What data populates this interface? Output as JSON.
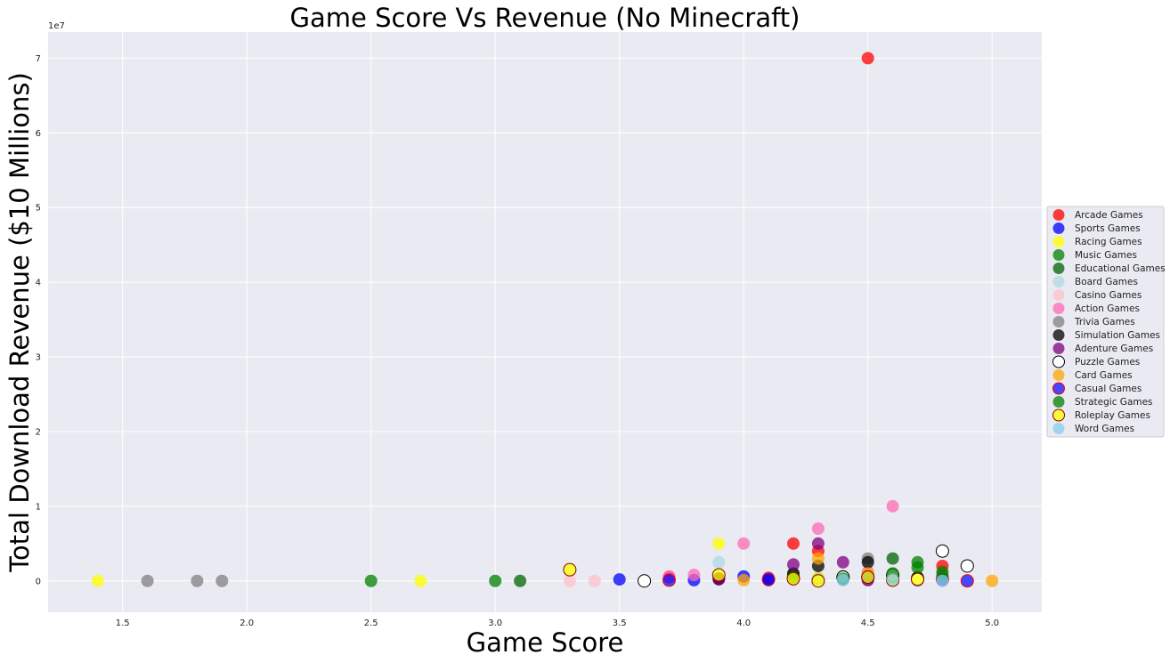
{
  "chart_data": {
    "type": "scatter",
    "title": "Game Score Vs Revenue (No Minecraft)",
    "xlabel": "Game Score",
    "ylabel": "Total Download Revenue ($10 Millions)",
    "y_offset_label": "1e7",
    "xlim": [
      1.2,
      5.2
    ],
    "ylim": [
      -0.42,
      7.35
    ],
    "y_scale_note": "values in units of 1e7",
    "x_ticks": [
      1.5,
      2.0,
      2.5,
      3.0,
      3.5,
      4.0,
      4.5,
      5.0
    ],
    "x_tick_labels": [
      "1.5",
      "2.0",
      "2.5",
      "3.0",
      "3.5",
      "4.0",
      "4.5",
      "5.0"
    ],
    "y_ticks": [
      0,
      1,
      2,
      3,
      4,
      5,
      6,
      7
    ],
    "y_tick_labels": [
      "0",
      "1",
      "2",
      "3",
      "4",
      "5",
      "6",
      "7"
    ],
    "grid": true,
    "legend_position": "center-right outside",
    "series": [
      {
        "name": "Arcade Games",
        "color": "#ff0000",
        "alpha": 0.75,
        "edge": "none",
        "points": [
          [
            4.5,
            7.0
          ],
          [
            4.2,
            0.5
          ],
          [
            3.7,
            0.05
          ],
          [
            3.9,
            0.03
          ],
          [
            4.3,
            0.4
          ],
          [
            4.5,
            0.08
          ],
          [
            4.8,
            0.2
          ],
          [
            4.6,
            0.05
          ],
          [
            4.7,
            0.02
          ]
        ]
      },
      {
        "name": "Sports Games",
        "color": "#0000ff",
        "alpha": 0.75,
        "edge": "none",
        "points": [
          [
            3.5,
            0.02
          ],
          [
            4.0,
            0.06
          ],
          [
            4.1,
            0.01
          ],
          [
            3.8,
            0.01
          ],
          [
            4.3,
            0.03
          ],
          [
            4.5,
            0.02
          ],
          [
            4.7,
            0.01
          ]
        ]
      },
      {
        "name": "Racing Games",
        "color": "#ffff00",
        "alpha": 0.75,
        "edge": "none",
        "points": [
          [
            1.4,
            0.0
          ],
          [
            2.7,
            0.0
          ],
          [
            3.9,
            0.5
          ],
          [
            4.3,
            0.05
          ],
          [
            4.5,
            0.03
          ],
          [
            4.6,
            0.02
          ]
        ]
      },
      {
        "name": "Music Games",
        "color": "#008000",
        "alpha": 0.75,
        "edge": "none",
        "points": [
          [
            2.5,
            0.0
          ],
          [
            3.0,
            0.0
          ],
          [
            4.2,
            0.08
          ],
          [
            4.7,
            0.25
          ],
          [
            4.8,
            0.12
          ],
          [
            4.6,
            0.05
          ]
        ]
      },
      {
        "name": "Educational Games",
        "color": "#006400",
        "alpha": 0.75,
        "edge": "none",
        "points": [
          [
            3.1,
            0.0
          ],
          [
            4.4,
            0.04
          ],
          [
            4.6,
            0.3
          ],
          [
            4.7,
            0.05
          ],
          [
            4.2,
            0.02
          ]
        ]
      },
      {
        "name": "Board Games",
        "color": "#add8e6",
        "alpha": 0.75,
        "edge": "none",
        "points": [
          [
            3.9,
            0.25
          ],
          [
            4.5,
            0.05
          ],
          [
            4.3,
            0.02
          ],
          [
            4.6,
            0.01
          ]
        ]
      },
      {
        "name": "Casino Games",
        "color": "#ffc0cb",
        "alpha": 0.75,
        "edge": "none",
        "points": [
          [
            3.3,
            0.0
          ],
          [
            3.4,
            0.0
          ],
          [
            4.2,
            0.01
          ],
          [
            4.4,
            0.02
          ]
        ]
      },
      {
        "name": "Action Games",
        "color": "#ff69b4",
        "alpha": 0.75,
        "edge": "none",
        "points": [
          [
            4.6,
            1.0
          ],
          [
            4.3,
            0.7
          ],
          [
            4.0,
            0.5
          ],
          [
            3.8,
            0.08
          ],
          [
            3.7,
            0.06
          ],
          [
            4.5,
            0.12
          ],
          [
            4.4,
            0.05
          ]
        ]
      },
      {
        "name": "Trivia Games",
        "color": "#808080",
        "alpha": 0.75,
        "edge": "none",
        "points": [
          [
            1.6,
            0.0
          ],
          [
            1.8,
            0.0
          ],
          [
            1.9,
            0.0
          ],
          [
            4.5,
            0.3
          ],
          [
            4.4,
            0.02
          ]
        ]
      },
      {
        "name": "Simulation Games",
        "color": "#000000",
        "alpha": 0.75,
        "edge": "none",
        "points": [
          [
            4.5,
            0.25
          ],
          [
            4.3,
            0.2
          ],
          [
            4.2,
            0.1
          ],
          [
            3.9,
            0.03
          ],
          [
            4.6,
            0.05
          ],
          [
            4.4,
            0.06
          ]
        ]
      },
      {
        "name": "Adenture Games",
        "color": "#800080",
        "alpha": 0.75,
        "edge": "none",
        "points": [
          [
            4.3,
            0.5
          ],
          [
            4.4,
            0.25
          ],
          [
            4.2,
            0.22
          ],
          [
            4.1,
            0.04
          ],
          [
            3.9,
            0.02
          ],
          [
            4.5,
            0.01
          ]
        ]
      },
      {
        "name": "Puzzle Games",
        "color": "#ffffff",
        "alpha": 1.0,
        "edge": "#000000",
        "points": [
          [
            4.8,
            0.4
          ],
          [
            4.9,
            0.2
          ],
          [
            4.6,
            0.08
          ],
          [
            3.6,
            0.0
          ],
          [
            4.4,
            0.05
          ],
          [
            4.7,
            0.03
          ]
        ]
      },
      {
        "name": "Card Games",
        "color": "#ffa500",
        "alpha": 0.75,
        "edge": "none",
        "points": [
          [
            5.0,
            0.0
          ],
          [
            4.3,
            0.3
          ],
          [
            4.5,
            0.1
          ],
          [
            4.0,
            0.01
          ]
        ]
      },
      {
        "name": "Casual Games",
        "color": "#0000ff",
        "alpha": 0.7,
        "edge": "#ff0000",
        "points": [
          [
            4.9,
            0.0
          ],
          [
            4.1,
            0.02
          ],
          [
            3.7,
            0.01
          ],
          [
            4.5,
            0.05
          ],
          [
            4.8,
            0.02
          ]
        ]
      },
      {
        "name": "Strategic Games",
        "color": "#008000",
        "alpha": 0.75,
        "edge": "none",
        "points": [
          [
            4.7,
            0.18
          ],
          [
            4.8,
            0.07
          ],
          [
            4.6,
            0.1
          ],
          [
            4.2,
            0.05
          ],
          [
            4.4,
            0.03
          ]
        ]
      },
      {
        "name": "Roleplay Games",
        "color": "#ffff00",
        "alpha": 0.75,
        "edge": "#8b0000",
        "points": [
          [
            3.3,
            0.15
          ],
          [
            3.9,
            0.08
          ],
          [
            4.3,
            0.0
          ],
          [
            4.5,
            0.05
          ],
          [
            4.7,
            0.02
          ],
          [
            4.2,
            0.03
          ],
          [
            4.6,
            0.01
          ]
        ]
      },
      {
        "name": "Word Games",
        "color": "#87ceeb",
        "alpha": 0.75,
        "edge": "none",
        "points": [
          [
            4.8,
            0.0
          ],
          [
            4.6,
            0.02
          ],
          [
            4.4,
            0.01
          ]
        ]
      }
    ]
  }
}
